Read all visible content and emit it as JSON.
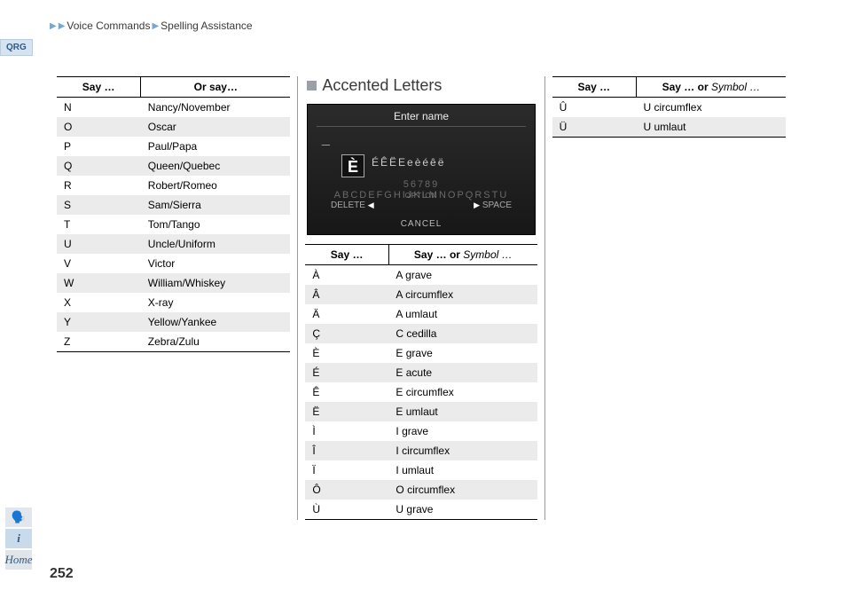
{
  "breadcrumb": {
    "part1": "Voice Commands",
    "part2": "Spelling Assistance"
  },
  "qrg": "QRG",
  "page_number": "252",
  "section_title": "Accented Letters",
  "table_headers": {
    "say": "Say …",
    "orsay": "Or say…",
    "sayor_pre": "Say … or ",
    "symbol": "Symbol …"
  },
  "phonetic": {
    "rows": [
      {
        "k": "N",
        "v": "Nancy/November"
      },
      {
        "k": "O",
        "v": "Oscar"
      },
      {
        "k": "P",
        "v": "Paul/Papa"
      },
      {
        "k": "Q",
        "v": "Queen/Quebec"
      },
      {
        "k": "R",
        "v": "Robert/Romeo"
      },
      {
        "k": "S",
        "v": "Sam/Sierra"
      },
      {
        "k": "T",
        "v": "Tom/Tango"
      },
      {
        "k": "U",
        "v": "Uncle/Uniform"
      },
      {
        "k": "V",
        "v": "Victor"
      },
      {
        "k": "W",
        "v": "William/Whiskey"
      },
      {
        "k": "X",
        "v": "X-ray"
      },
      {
        "k": "Y",
        "v": "Yellow/Yankee"
      },
      {
        "k": "Z",
        "v": "Zebra/Zulu"
      }
    ]
  },
  "accented_a": {
    "rows": [
      {
        "k": "À",
        "v": "A grave"
      },
      {
        "k": "Â",
        "v": "A circumflex"
      },
      {
        "k": "Ä",
        "v": "A umlaut"
      },
      {
        "k": "Ç",
        "v": "C cedilla"
      },
      {
        "k": "È",
        "v": "E grave"
      },
      {
        "k": "É",
        "v": "E acute"
      },
      {
        "k": "Ê",
        "v": "E circumflex"
      },
      {
        "k": "Ë",
        "v": "E umlaut"
      },
      {
        "k": "Ì",
        "v": "I grave"
      },
      {
        "k": "Î",
        "v": "I circumflex"
      },
      {
        "k": "Ï",
        "v": "I umlaut"
      },
      {
        "k": "Ô",
        "v": "O circumflex"
      },
      {
        "k": "Ù",
        "v": "U grave"
      }
    ]
  },
  "accented_b": {
    "rows": [
      {
        "k": "Û",
        "v": "U circumflex"
      },
      {
        "k": "Ü",
        "v": "U umlaut"
      }
    ]
  },
  "device": {
    "title": "Enter name",
    "big": "È",
    "accent_row": "ÉÊËEeèéêë",
    "alpha_row": "56789  ABCDEFGHIJKLMNOPQRSTU",
    "option": "OPTION",
    "delete": "DELETE",
    "space": "SPACE",
    "cancel": "CANCEL"
  },
  "icons": {
    "voice": "🗣️",
    "info": "i",
    "home": "Home"
  }
}
